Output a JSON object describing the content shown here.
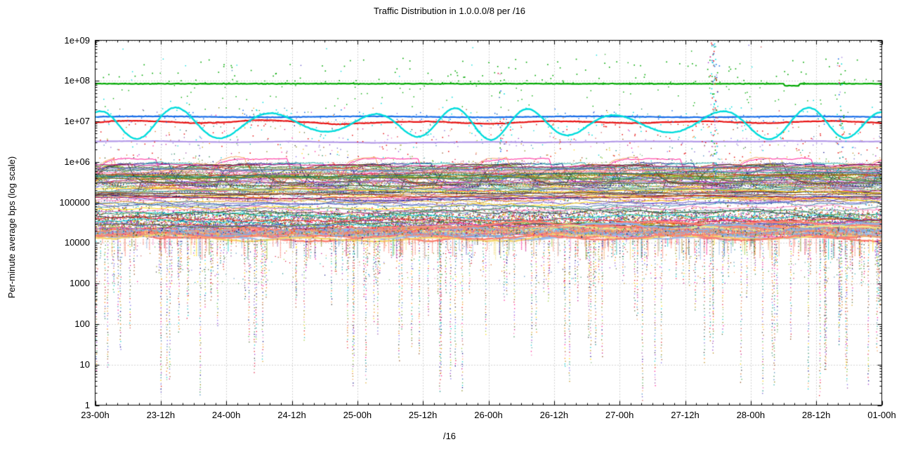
{
  "chart_data": {
    "type": "scatter",
    "title": "Traffic Distribution in 1.0.0.0/8 per /16",
    "ylabel": "Per-minute average bps (log scale)",
    "xlabel": "/16",
    "x_tick_labels": [
      "23-00h",
      "23-12h",
      "24-00h",
      "24-12h",
      "25-00h",
      "25-12h",
      "26-00h",
      "26-12h",
      "27-00h",
      "27-12h",
      "28-00h",
      "28-12h",
      "01-00h"
    ],
    "x_range_hours": 144,
    "x_major_tick_hours": 12,
    "x_minor_tick_hours": 2,
    "y_tick_labels": [
      "1",
      "10",
      "100",
      "1000",
      "10000",
      "100000",
      "1e+06",
      "1e+07",
      "1e+08",
      "1e+09"
    ],
    "ylim": [
      1,
      1000000000
    ],
    "y_scale": "log10",
    "grid": {
      "style": "dotted",
      "color": "#a6a6a6",
      "at": "major ticks"
    },
    "legend": "none",
    "series": [
      {
        "name": "top-talker-green-line",
        "color": "#00a800",
        "pattern": "flat",
        "approx_bps": 85000000
      },
      {
        "name": "diurnal-cyan-line",
        "color": "#00dcdc",
        "pattern": "oscillating",
        "min_bps": 3500000,
        "max_bps": 22000000,
        "approx_period_hours": 16
      },
      {
        "name": "steady-blue-line",
        "color": "#1a6ee8",
        "pattern": "flat",
        "approx_bps": 13000000
      },
      {
        "name": "wandering-red-line",
        "color": "#e81414",
        "pattern": "slow wander",
        "approx_bps": 9500000
      },
      {
        "name": "steady-lavender-line",
        "color": "#b49ae8",
        "pattern": "flat",
        "approx_bps": 3200000
      }
    ],
    "noise_bands": [
      {
        "name": "stepped-hump-band",
        "log10_bps_range": [
          5.0,
          6.2
        ],
        "series_count": 46,
        "style": "flat lines with daily square humps, many colors"
      },
      {
        "name": "flat-line-band",
        "log10_bps_range": [
          5.0,
          6.0
        ],
        "series_count": 18,
        "style": "noisy horizontal lines"
      },
      {
        "name": "dense-speckle-band",
        "log10_bps_range": [
          4.05,
          5.45
        ],
        "dot_count": 9000,
        "style": "dense multicolor speckle"
      },
      {
        "name": "salmon-band",
        "log10_bps_range": [
          4.05,
          4.6
        ],
        "line_count": 14,
        "dominant_colors": [
          "#fa8072",
          "#8cb4e4",
          "#f0e68c",
          "#e9967a"
        ],
        "style": "thick fuzzy overlapping lines"
      }
    ],
    "down_spikes": {
      "count": 175,
      "from_log10_bps": 4.05,
      "deepest_log10_bps": 0.3,
      "style": "dotted vertical multicolor columns"
    },
    "up_spike_clusters": [
      {
        "hour": 74.0,
        "max_bps": 250000000,
        "dots": 40
      },
      {
        "hour": 113.2,
        "max_bps": 950000000,
        "dots": 115
      },
      {
        "hour": 136.3,
        "max_bps": 500000000,
        "dots": 50
      }
    ],
    "scatter_palette": [
      "#e41a1c",
      "#377eb8",
      "#4daf4a",
      "#984ea3",
      "#ff7f00",
      "#a65628",
      "#f781bf",
      "#808000",
      "#008080",
      "#000080",
      "#8b4513",
      "#ff1493",
      "#00ced1",
      "#9acd32",
      "#b8860b",
      "#dc143c",
      "#6a5acd",
      "#2e8b57",
      "#d2691e",
      "#c71585",
      "#556b2f",
      "#4682b4",
      "#daa520",
      "#7b68ee",
      "#cd5c5c",
      "#20b2aa",
      "#9932cc",
      "#8fbc8f",
      "#f4a460",
      "#5f9ea0",
      "#333333",
      "#ffd700"
    ]
  }
}
